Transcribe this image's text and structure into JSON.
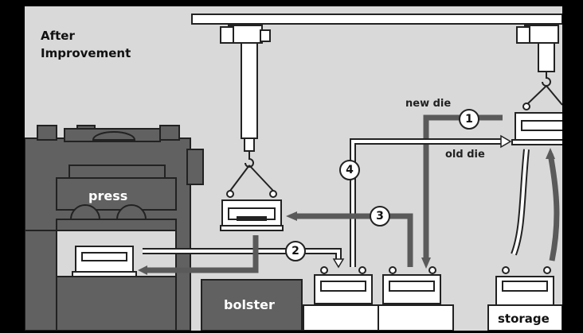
{
  "title_line1": "After",
  "title_line2": "Improvement",
  "labels": {
    "press": "press",
    "bolster": "bolster",
    "storage": "storage",
    "new_die": "new die",
    "old_die": "old die"
  },
  "steps": [
    "1",
    "2",
    "3",
    "4"
  ],
  "colors": {
    "background": "#d9d9d9",
    "machine": "#616161",
    "outline": "#222222",
    "die": "#ffffff"
  }
}
